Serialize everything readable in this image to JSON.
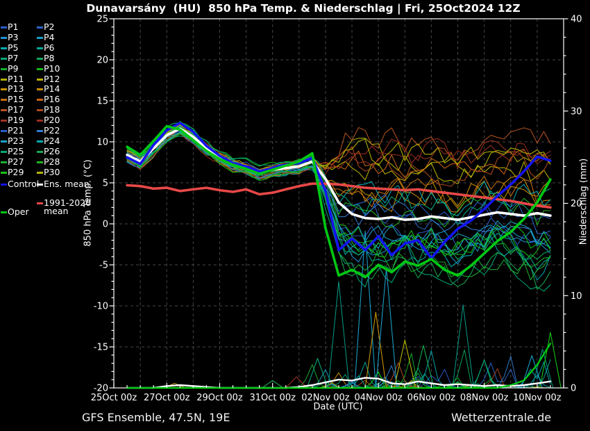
{
  "title": "Dunavarsány  (HU)  850 hPa Temp. & Niederschlag | Fri, 25Oct2024 12Z",
  "footer": {
    "left": "GFS Ensemble, 47.5N, 19E",
    "right": "Wetterzentrale.de"
  },
  "legend": {
    "members": [
      {
        "label": "P1",
        "color": "#2a5cc8"
      },
      {
        "label": "P2",
        "color": "#2a66cc"
      },
      {
        "label": "P3",
        "color": "#2090d2"
      },
      {
        "label": "P4",
        "color": "#14a0c8"
      },
      {
        "label": "P5",
        "color": "#00a8b0"
      },
      {
        "label": "P6",
        "color": "#00aa96"
      },
      {
        "label": "P7",
        "color": "#00a878"
      },
      {
        "label": "P8",
        "color": "#0aa95f"
      },
      {
        "label": "P9",
        "color": "#15b02d"
      },
      {
        "label": "P10",
        "color": "#0fbe16"
      },
      {
        "label": "P11",
        "color": "#b0b000"
      },
      {
        "label": "P12",
        "color": "#bcb400"
      },
      {
        "label": "P13",
        "color": "#c79400"
      },
      {
        "label": "P14",
        "color": "#cc8c00"
      },
      {
        "label": "P15",
        "color": "#c87010"
      },
      {
        "label": "P16",
        "color": "#cc6414"
      },
      {
        "label": "P17",
        "color": "#b45220"
      },
      {
        "label": "P18",
        "color": "#ae4a1e"
      },
      {
        "label": "P19",
        "color": "#a03223"
      },
      {
        "label": "P20",
        "color": "#9b2d20"
      },
      {
        "label": "P21",
        "color": "#2a5cc8"
      },
      {
        "label": "P22",
        "color": "#2f7ed2"
      },
      {
        "label": "P23",
        "color": "#19a2c8"
      },
      {
        "label": "P24",
        "color": "#00a9b4"
      },
      {
        "label": "P25",
        "color": "#00a877"
      },
      {
        "label": "P26",
        "color": "#17a94f"
      },
      {
        "label": "P27",
        "color": "#1fae2f"
      },
      {
        "label": "P28",
        "color": "#22b422"
      },
      {
        "label": "P29",
        "color": "#16c516"
      },
      {
        "label": "P30",
        "color": "#b4b400"
      }
    ],
    "control": {
      "label": "Control",
      "color": "#1414f0"
    },
    "ens_mean": {
      "label": "Ens. mean",
      "color": "#ffffff"
    },
    "clim_mean": {
      "label_line1": "1991-2020",
      "label_line2": "mean",
      "color": "#e84848"
    },
    "oper": {
      "label": "Oper",
      "color": "#00c814"
    }
  },
  "chart_data": {
    "type": "line",
    "title": "Dunavarsány (HU) 850 hPa Temp. & Niederschlag | Fri, 25Oct2024 12Z",
    "xlabel": "Date (UTC)",
    "ylabel_left": "850 hPa Temp. (°C)",
    "ylabel_right": "Niederschlag (mm)",
    "x_domain_days": [
      0,
      17
    ],
    "x_tick_labels": [
      "25Oct 00z",
      "27Oct 00z",
      "29Oct 00z",
      "31Oct 00z",
      "02Nov 00z",
      "04Nov 00z",
      "06Nov 00z",
      "08Nov 00z",
      "10Nov 00z"
    ],
    "x_tick_days": [
      0,
      2,
      4,
      6,
      8,
      10,
      12,
      14,
      16
    ],
    "y_left": {
      "min": -20,
      "max": 25,
      "ticks": [
        25,
        20,
        15,
        10,
        5,
        0,
        -5,
        -10,
        -15,
        -20
      ]
    },
    "y_right": {
      "min": 0,
      "max": 40,
      "ticks": [
        40,
        30,
        20,
        10,
        0
      ]
    },
    "grid_temps": [
      20,
      15,
      10,
      5,
      0,
      -5,
      -10,
      -15
    ],
    "days": [
      0.5,
      1,
      1.5,
      2,
      2.5,
      3,
      3.5,
      4,
      4.5,
      5,
      5.5,
      6,
      6.5,
      7,
      7.5,
      8,
      8.5,
      9,
      9.5,
      10,
      10.5,
      11,
      11.5,
      12,
      12.5,
      13,
      13.5,
      14,
      14.5,
      15,
      15.5,
      16,
      16.5
    ],
    "series": {
      "ens_mean_temp": [
        8.4,
        7.6,
        9.2,
        10.8,
        11.6,
        10.6,
        9.2,
        8.1,
        7.3,
        6.9,
        6.3,
        6.6,
        6.8,
        7.0,
        7.6,
        5.5,
        2.6,
        1.2,
        0.7,
        0.6,
        0.8,
        0.5,
        0.6,
        0.9,
        0.7,
        0.5,
        0.8,
        1.1,
        1.4,
        1.2,
        1.0,
        1.3,
        1.0
      ],
      "control_temp": [
        8.1,
        7.3,
        9.6,
        11.4,
        12.3,
        11.2,
        9.5,
        8.3,
        7.4,
        7.0,
        6.4,
        6.8,
        7.2,
        7.4,
        8.0,
        4.0,
        -3.2,
        -1.8,
        -3.2,
        -1.5,
        -3.8,
        -2.4,
        -2.0,
        -4.2,
        -2.2,
        -0.6,
        0.4,
        1.8,
        3.4,
        4.8,
        6.4,
        8.2,
        7.7
      ],
      "oper_temp": [
        9.4,
        8.4,
        10.1,
        11.9,
        11.5,
        10.2,
        8.9,
        7.9,
        7.2,
        6.7,
        6.1,
        6.6,
        7.1,
        7.6,
        8.6,
        -0.5,
        -6.3,
        -5.6,
        -6.5,
        -5.0,
        -5.9,
        -4.6,
        -5.1,
        -4.3,
        -5.6,
        -6.3,
        -5.1,
        -3.6,
        -2.1,
        -1.0,
        0.6,
        2.6,
        5.4
      ],
      "climate_mean_temp": [
        4.7,
        4.6,
        4.3,
        4.4,
        4.0,
        4.2,
        4.4,
        4.1,
        3.9,
        4.2,
        3.6,
        3.8,
        4.2,
        4.6,
        4.9,
        4.9,
        4.8,
        4.6,
        4.4,
        4.3,
        4.2,
        4.1,
        4.2,
        4.0,
        3.8,
        3.6,
        3.4,
        3.2,
        3.0,
        2.8,
        2.5,
        2.2,
        2.0
      ],
      "ens_mean_precip": [
        0,
        0,
        0,
        0.2,
        0.3,
        0.2,
        0.1,
        0,
        0,
        0,
        0,
        0,
        0,
        0.1,
        0.3,
        0.6,
        0.9,
        0.8,
        1.1,
        1.0,
        0.5,
        0.4,
        0.7,
        0.5,
        0.3,
        0.4,
        0.3,
        0.2,
        0.3,
        0.2,
        0.3,
        0.5,
        0.7
      ],
      "oper_precip": [
        0,
        0,
        0,
        0,
        0,
        0,
        0,
        0,
        0,
        0,
        0,
        0,
        0,
        0,
        0,
        0,
        0,
        0,
        0,
        0,
        0,
        0,
        0,
        0,
        0,
        0,
        0,
        0,
        0,
        0.3,
        0.8,
        2.5,
        4.8
      ]
    },
    "ensemble": {
      "count": 30,
      "temp_envelope_min": [
        7.4,
        6.6,
        8.2,
        9.8,
        10.2,
        9.0,
        7.2,
        6.2,
        5.0,
        5.2,
        4.6,
        4.8,
        5.0,
        5.2,
        3.0,
        -2.5,
        -6.5,
        -7.0,
        -7.5,
        -6.5,
        -7.0,
        -6.0,
        -6.5,
        -6.0,
        -7.0,
        -7.5,
        -6.5,
        -6.0,
        -5.5,
        -6.0,
        -7.0,
        -8.5,
        -7.5
      ],
      "temp_envelope_max": [
        9.6,
        8.8,
        10.4,
        12.6,
        13.4,
        12.4,
        11.0,
        10.0,
        9.2,
        8.6,
        8.0,
        8.4,
        9.0,
        10.5,
        12.0,
        12.6,
        12.2,
        12.0,
        11.5,
        11.0,
        11.5,
        11.0,
        10.5,
        11.0,
        10.5,
        10.0,
        10.5,
        11.0,
        10.5,
        11.0,
        11.5,
        11.0,
        11.5
      ],
      "render_seed": 11
    },
    "precip_spikes": [
      {
        "day": 2.3,
        "mm": 0.5,
        "color": "#c79400"
      },
      {
        "day": 6.0,
        "mm": 0.8,
        "color": "#17a94f"
      },
      {
        "day": 6.9,
        "mm": 1.2,
        "color": "#a03223"
      },
      {
        "day": 7.7,
        "mm": 3.2,
        "color": "#00a877"
      },
      {
        "day": 8.5,
        "mm": 11.5,
        "color": "#00917d"
      },
      {
        "day": 9.5,
        "mm": 17.0,
        "color": "#1a9ec4"
      },
      {
        "day": 9.9,
        "mm": 8.2,
        "color": "#c79400"
      },
      {
        "day": 10.3,
        "mm": 13.0,
        "color": "#1a9ec4"
      },
      {
        "day": 11.0,
        "mm": 5.2,
        "color": "#b4b400"
      },
      {
        "day": 11.7,
        "mm": 4.6,
        "color": "#17a94f"
      },
      {
        "day": 13.2,
        "mm": 9.0,
        "color": "#00917d"
      },
      {
        "day": 14.0,
        "mm": 3.0,
        "color": "#00a877"
      },
      {
        "day": 15.8,
        "mm": 3.5,
        "color": "#19a2c8"
      },
      {
        "day": 16.2,
        "mm": 4.2,
        "color": "#00917d"
      },
      {
        "day": 16.5,
        "mm": 6.0,
        "color": "#16c516"
      }
    ]
  }
}
